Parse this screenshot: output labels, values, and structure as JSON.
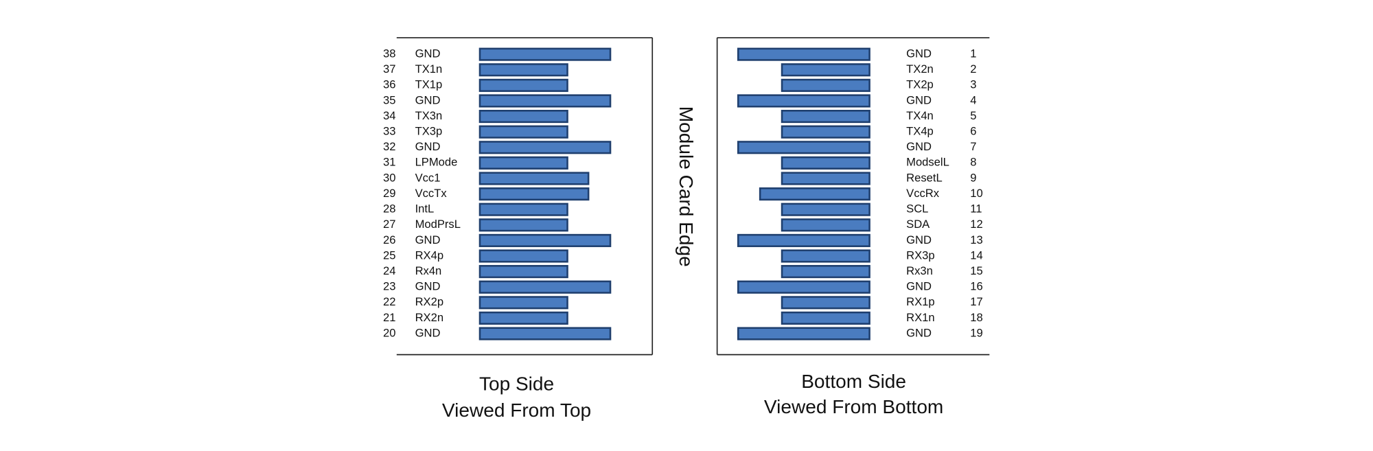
{
  "card_edge_label": "Module Card Edge",
  "top_side": {
    "caption": [
      "Top Side",
      "Viewed From Top"
    ],
    "pins": [
      {
        "number": 38,
        "label": "GND"
      },
      {
        "number": 37,
        "label": "TX1n"
      },
      {
        "number": 36,
        "label": "TX1p"
      },
      {
        "number": 35,
        "label": "GND"
      },
      {
        "number": 34,
        "label": "TX3n"
      },
      {
        "number": 33,
        "label": "TX3p"
      },
      {
        "number": 32,
        "label": "GND"
      },
      {
        "number": 31,
        "label": "LPMode"
      },
      {
        "number": 30,
        "label": "Vcc1"
      },
      {
        "number": 29,
        "label": "VccTx"
      },
      {
        "number": 28,
        "label": "IntL"
      },
      {
        "number": 27,
        "label": "ModPrsL"
      },
      {
        "number": 26,
        "label": "GND"
      },
      {
        "number": 25,
        "label": "RX4p"
      },
      {
        "number": 24,
        "label": "Rx4n"
      },
      {
        "number": 23,
        "label": "GND"
      },
      {
        "number": 22,
        "label": "RX2p"
      },
      {
        "number": 21,
        "label": "RX2n"
      },
      {
        "number": 20,
        "label": "GND"
      }
    ]
  },
  "bottom_side": {
    "caption": [
      "Bottom Side",
      "Viewed From Bottom"
    ],
    "pins": [
      {
        "number": 1,
        "label": "GND"
      },
      {
        "number": 2,
        "label": "TX2n"
      },
      {
        "number": 3,
        "label": "TX2p"
      },
      {
        "number": 4,
        "label": "GND"
      },
      {
        "number": 5,
        "label": "TX4n"
      },
      {
        "number": 6,
        "label": "TX4p"
      },
      {
        "number": 7,
        "label": "GND"
      },
      {
        "number": 8,
        "label": "ModselL"
      },
      {
        "number": 9,
        "label": "ResetL"
      },
      {
        "number": 10,
        "label": "VccRx"
      },
      {
        "number": 11,
        "label": "SCL"
      },
      {
        "number": 12,
        "label": "SDA"
      },
      {
        "number": 13,
        "label": "GND"
      },
      {
        "number": 14,
        "label": "RX3p"
      },
      {
        "number": 15,
        "label": "Rx3n"
      },
      {
        "number": 16,
        "label": "GND"
      },
      {
        "number": 17,
        "label": "RX1p"
      },
      {
        "number": 18,
        "label": "RX1n"
      },
      {
        "number": 19,
        "label": "GND"
      }
    ]
  }
}
